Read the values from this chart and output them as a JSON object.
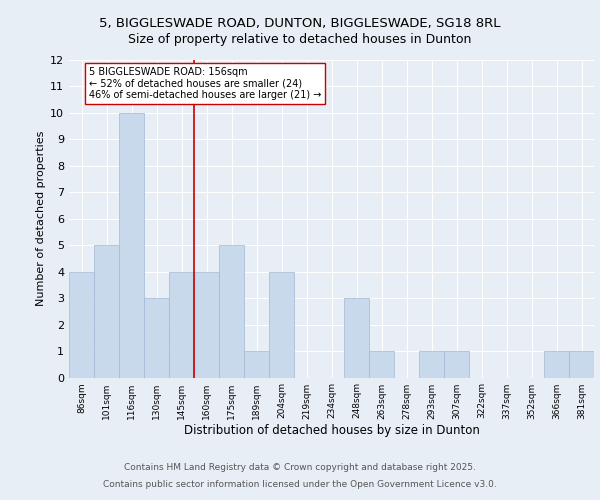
{
  "title1": "5, BIGGLESWADE ROAD, DUNTON, BIGGLESWADE, SG18 8RL",
  "title2": "Size of property relative to detached houses in Dunton",
  "xlabel": "Distribution of detached houses by size in Dunton",
  "ylabel": "Number of detached properties",
  "categories": [
    "86sqm",
    "101sqm",
    "116sqm",
    "130sqm",
    "145sqm",
    "160sqm",
    "175sqm",
    "189sqm",
    "204sqm",
    "219sqm",
    "234sqm",
    "248sqm",
    "263sqm",
    "278sqm",
    "293sqm",
    "307sqm",
    "322sqm",
    "337sqm",
    "352sqm",
    "366sqm",
    "381sqm"
  ],
  "values": [
    4,
    5,
    10,
    3,
    4,
    4,
    5,
    1,
    4,
    0,
    0,
    3,
    1,
    0,
    1,
    1,
    0,
    0,
    0,
    1,
    1
  ],
  "bar_color": "#c9d9ec",
  "bar_edge_color": "#a0b8d4",
  "vline_x_index": 5,
  "vline_color": "#cc0000",
  "annotation_text": "5 BIGGLESWADE ROAD: 156sqm\n← 52% of detached houses are smaller (24)\n46% of semi-detached houses are larger (21) →",
  "ylim": [
    0,
    12
  ],
  "yticks": [
    0,
    1,
    2,
    3,
    4,
    5,
    6,
    7,
    8,
    9,
    10,
    11,
    12
  ],
  "footer1": "Contains HM Land Registry data © Crown copyright and database right 2025.",
  "footer2": "Contains public sector information licensed under the Open Government Licence v3.0.",
  "bg_color": "#e8eef5",
  "plot_bg_color": "#e8eef5"
}
